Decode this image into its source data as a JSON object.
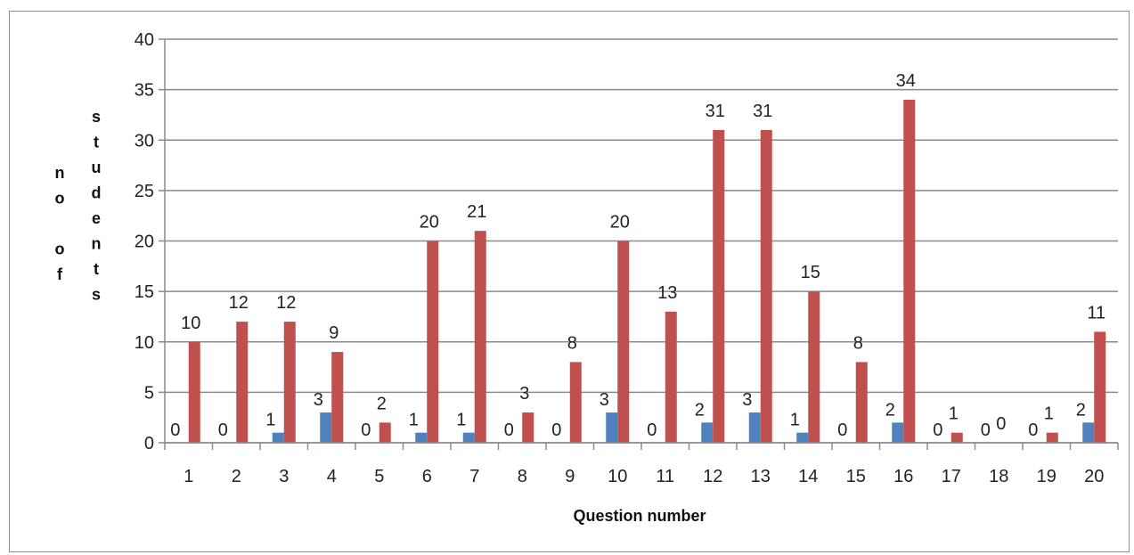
{
  "chart_data": {
    "type": "bar",
    "title": "",
    "xlabel": "Question number",
    "ylabel": "no of students",
    "ylabel_columns": [
      [
        "n",
        "o",
        "",
        "o",
        "f"
      ],
      [
        "s",
        "t",
        "u",
        "d",
        "e",
        "n",
        "t",
        "s"
      ]
    ],
    "ylim": [
      0,
      40
    ],
    "yticks": [
      0,
      5,
      10,
      15,
      20,
      25,
      30,
      35,
      40
    ],
    "grid": true,
    "legend": "none",
    "categories": [
      "1",
      "2",
      "3",
      "4",
      "5",
      "6",
      "7",
      "8",
      "9",
      "10",
      "11",
      "12",
      "13",
      "14",
      "15",
      "16",
      "17",
      "18",
      "19",
      "20"
    ],
    "series": [
      {
        "color": "#4f81bd",
        "values": [
          0,
          0,
          1,
          3,
          0,
          1,
          1,
          0,
          0,
          3,
          0,
          2,
          3,
          1,
          0,
          2,
          0,
          0,
          0,
          2
        ]
      },
      {
        "color": "#c0504d",
        "values": [
          10,
          12,
          12,
          9,
          2,
          20,
          21,
          3,
          8,
          20,
          13,
          31,
          31,
          15,
          8,
          34,
          1,
          0,
          1,
          11
        ]
      }
    ]
  }
}
